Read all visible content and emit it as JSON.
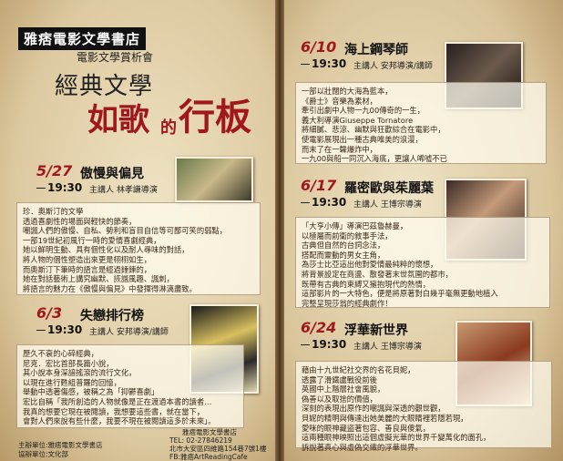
{
  "header": {
    "store_name": "雅痞電影文學書店",
    "subtitle": "電影文學賞析會",
    "title_line1": "經典文學",
    "title_line2a": "如歌",
    "title_line2b": "的",
    "title_line2c": "行板"
  },
  "events": [
    {
      "date": "5/27",
      "time": "19:30",
      "title": "傲慢與偏見",
      "speaker": "主講人 林孝謙導演",
      "description": [
        "珍．奧斯汀的文學",
        "透過喜劇性的場面與輕快的節奏，",
        "嘲諷人們的傲慢、自私、勢利和盲目自信等可鄙可笑的弱點，",
        "一部19世紀初風行一時的愛情喜劇經典，",
        "她以鮮明生動、具有個性化以及耐人尋味的對話，",
        "將人物的個性塑造出來更是栩栩如生，",
        "而奧斯汀下筆時的語言是經過錘鍊的，",
        "她在對話藝術上講究幽默、詼諧風趣、諷刺，",
        "將語言的魅力在《傲慢與偏見》中發揮得淋漓盡致。"
      ]
    },
    {
      "date": "6/3",
      "time": "19:30",
      "title": "失戀排行榜",
      "speaker": "主講人 安邦導演/講師",
      "description": [
        "歷久不衰的心碎經典，",
        "尼克．宏比首部長篇小說，",
        "其小說本身深諳搖滾的流行文化，",
        "以現在進行甦組普羅的回憶，",
        "舉動中透著傷感，被稱之為「抑鬱喜劇」",
        "宏比自稱「我所創造的人物就像是正在渡過本書的讀者…",
        "我真的想要它現在被閱讀，我想要這些書，就在當下，",
        "會對人們來說有些什麼，我要不現在被閱讀這多於未來」。"
      ]
    },
    {
      "date": "6/10",
      "time": "19:30",
      "title": "海上鋼琴師",
      "speaker": "主講人 安邦導演/講師",
      "description": [
        "一部以壯闊的大海為藍本，",
        "《爵士》音樂為素材，",
        "牽引出劇中人物一九00傳奇的一生，",
        "義大利導演Giuseppe Tornatore",
        "將細膩、悲涼、幽默與狂歡綜合在電影中，",
        "使電影展現出一種古典唯美的浪漫，",
        "而末了在一聲爆炸中，",
        "一九00與船一同沉入海底，更讓人唏噓不已"
      ]
    },
    {
      "date": "6/17",
      "time": "19:30",
      "title": "羅密歐與茱麗葉",
      "speaker": "主講人 王博宗導演",
      "description": [
        "「大亨小傳」導演巴茲魯赫曼，",
        "以極屬而前衛的敘事手法，",
        "古典但自然的台詞念法，",
        "搭配而靈動的男女主角，",
        "為莎士比亞這出他對愛情最純粹的懷想，",
        "將背景設定在商盪、散發著末世氛圍的都市，",
        "既帶有古典的束縛又擁抱現代的熱情，",
        "這部影片的一大特色，便是將原著對白幾乎毫無更動地植入",
        "完整呈現莎翁的經典劇作！"
      ]
    },
    {
      "date": "6/24",
      "time": "19:30",
      "title": "浮華新世界",
      "speaker": "主講人 王博宗導演",
      "description": [
        "藉由十九世紀社交界的名花貝妮，",
        "透露了滑鐵盧戰役前後",
        "英國中上階層社會風貌，",
        "偽善以及取捨的價值，",
        "深刻的表現出原作的嘲諷與深透的觀世觀，",
        "貝妮的精明與傳達出她美麗的大眼睛裡若隱若現，",
        "愛咪的眼神藏盜著包容、善良與傻氣，",
        "這兩種眼神映照出這個虛擬光華的世界千變萬化的面孔，",
        "訴說著真心與虛偽交織的浮華世界。"
      ]
    }
  ],
  "footer": {
    "contact": [
      "雅痞電影文學書店",
      "TEL: 02-27846219",
      "北市大安區四維路154巷7號1樓",
      "FB:雅痞ArtReadingCafe"
    ],
    "organizers": [
      "主辦單位:雅痞電影文學書店",
      "協辦單位:文化部"
    ]
  }
}
